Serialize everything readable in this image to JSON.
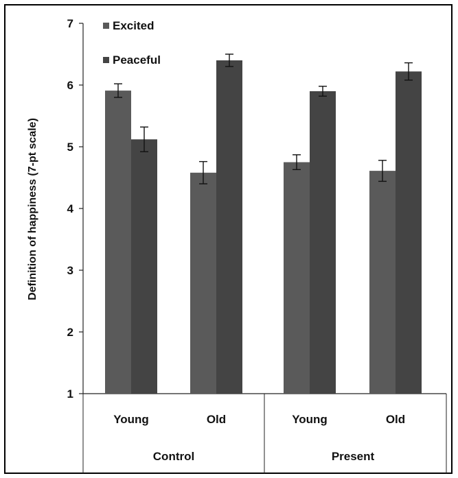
{
  "chart_data": {
    "type": "bar",
    "title": "",
    "ylabel": "Definition of happiness (7-pt scale)",
    "xlabel": "",
    "ylim": [
      1,
      7
    ],
    "yticks": [
      "1",
      "2",
      "3",
      "4",
      "5",
      "6",
      "7"
    ],
    "groups": [
      {
        "label": "Control",
        "categories": [
          "Young",
          "Old"
        ]
      },
      {
        "label": "Present",
        "categories": [
          "Young",
          "Old"
        ]
      }
    ],
    "categories": [
      "Young",
      "Old",
      "Young",
      "Old"
    ],
    "series": [
      {
        "name": "Excited",
        "values": [
          5.91,
          4.58,
          4.75,
          4.61
        ],
        "errors": [
          0.11,
          0.18,
          0.12,
          0.17
        ],
        "color": "#5a5a5a"
      },
      {
        "name": "Peaceful",
        "values": [
          5.12,
          6.4,
          5.9,
          6.22
        ],
        "errors": [
          0.2,
          0.1,
          0.08,
          0.14
        ],
        "color": "#444444"
      }
    ],
    "legend_position": "top-left",
    "grid": false
  }
}
